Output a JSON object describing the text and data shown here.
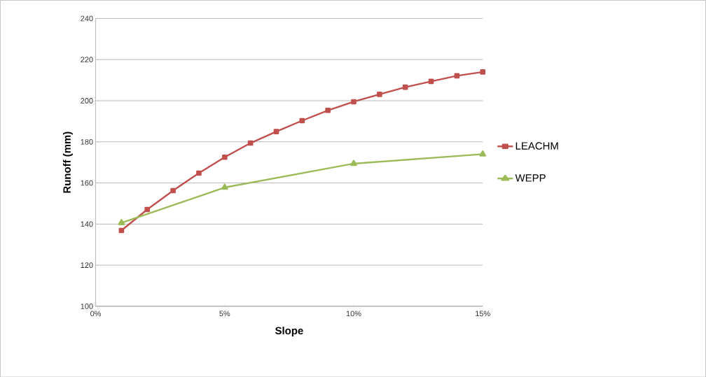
{
  "chart_data": {
    "type": "line",
    "xlabel": "Slope",
    "ylabel": "Runoff (mm)",
    "xlim": [
      0,
      15
    ],
    "xticks": [
      {
        "value": 0,
        "label": "0%"
      },
      {
        "value": 5,
        "label": "5%"
      },
      {
        "value": 10,
        "label": "10%"
      },
      {
        "value": 15,
        "label": "15%"
      }
    ],
    "ylim": [
      100,
      240
    ],
    "yticks": [
      100,
      120,
      140,
      160,
      180,
      200,
      220,
      240
    ],
    "grid": "y",
    "legend": "right",
    "series": [
      {
        "name": "LEACHM",
        "color": "#c0504d",
        "marker": "square",
        "x": [
          1,
          2,
          3,
          4,
          5,
          6,
          7,
          8,
          9,
          10,
          11,
          12,
          13,
          14,
          15
        ],
        "values": [
          136.9,
          147.1,
          156.3,
          164.8,
          172.5,
          179.4,
          185.0,
          190.3,
          195.3,
          199.5,
          203.1,
          206.6,
          209.4,
          212.1,
          214.0
        ]
      },
      {
        "name": "WEPP",
        "color": "#9bbb59",
        "marker": "triangle",
        "x": [
          1,
          5,
          10,
          15
        ],
        "values": [
          140.6,
          157.8,
          169.4,
          174.0
        ]
      }
    ]
  }
}
